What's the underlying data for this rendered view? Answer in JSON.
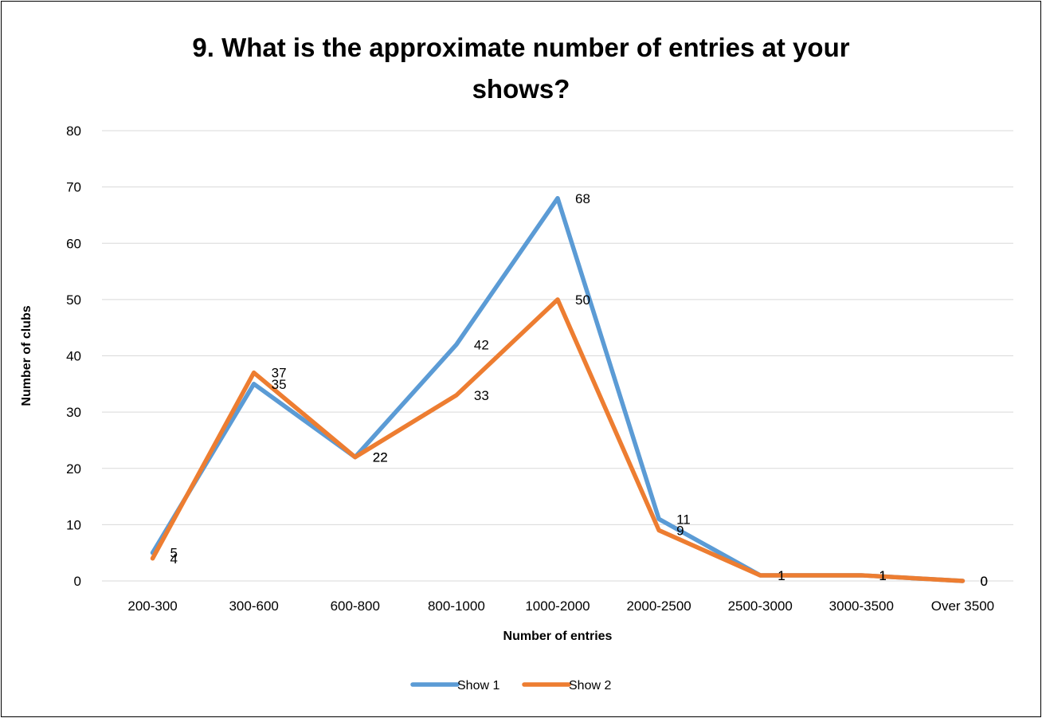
{
  "chart_data": {
    "type": "line",
    "title_lines": [
      "9.  What is the approximate number of entries at your",
      "shows?"
    ],
    "xlabel": "Number of entries",
    "ylabel": "Number of clubs",
    "categories": [
      "200-300",
      "300-600",
      "600-800",
      "800-1000",
      "1000-2000",
      "2000-2500",
      "2500-3000",
      "3000-3500",
      "Over 3500"
    ],
    "ylim": [
      0,
      80
    ],
    "yticks": [
      0,
      10,
      20,
      30,
      40,
      50,
      60,
      70,
      80
    ],
    "grid": true,
    "legend_position": "bottom",
    "series": [
      {
        "name": "Show 1",
        "color": "#5B9BD5",
        "values": [
          5,
          35,
          22,
          42,
          68,
          11,
          1,
          1,
          0
        ]
      },
      {
        "name": "Show 2",
        "color": "#ED7D31",
        "values": [
          4,
          37,
          22,
          33,
          50,
          9,
          1,
          1,
          0
        ]
      }
    ]
  }
}
